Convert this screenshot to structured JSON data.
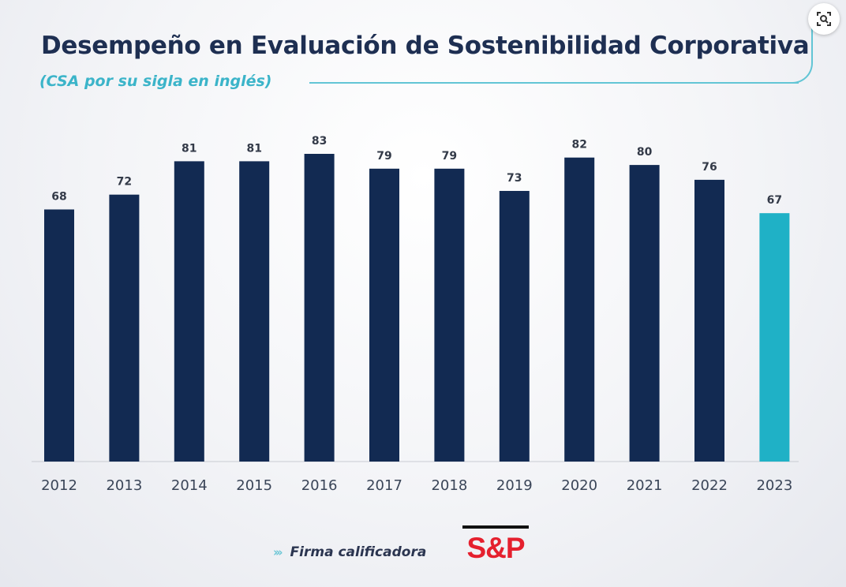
{
  "title": "Desempeño en Evaluación de Sostenibilidad Corporativa",
  "subtitle": "(CSA por su sigla en inglés)",
  "footer": {
    "chevrons": "›››",
    "label": "Firma calificadora",
    "logo_text": "S&P"
  },
  "colors": {
    "bar": "#122a52",
    "highlight_bar": "#1fb1c6",
    "value_label": "#333a48",
    "tick_label": "#3a4558",
    "axis": "#c9ccd3",
    "logo": "#e5202e"
  },
  "icons": {
    "screen_button": "screen-search-icon"
  },
  "chart_data": {
    "type": "bar",
    "title": "Desempeño en Evaluación de Sostenibilidad Corporativa",
    "subtitle": "(CSA por su sigla en inglés)",
    "xlabel": "",
    "ylabel": "",
    "categories": [
      "2012",
      "2013",
      "2014",
      "2015",
      "2016",
      "2017",
      "2018",
      "2019",
      "2020",
      "2021",
      "2022",
      "2023"
    ],
    "values": [
      68,
      72,
      81,
      81,
      83,
      79,
      79,
      73,
      82,
      80,
      76,
      67
    ],
    "highlight_index": 11,
    "ylim": [
      0,
      83
    ],
    "grid": false,
    "legend": "none"
  }
}
